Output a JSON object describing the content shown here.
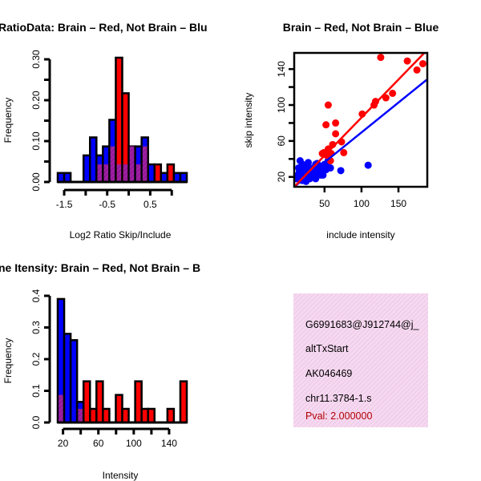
{
  "colors": {
    "brain": "#ff0000",
    "not_brain": "#0000ff",
    "overlap": "#a020a0",
    "info_bg": "#f7d8f2",
    "pval": "#b00000"
  },
  "chart_data": [
    {
      "type": "bar",
      "title": "RatioData: Brain – Red, Not Brain – Blu",
      "xlabel": "Log2 Ratio Skip/Include",
      "ylabel": "Frequency",
      "bin_start": -1.65,
      "bin_width": 0.15,
      "xlim": [
        -1.65,
        1.35
      ],
      "ylim": [
        0,
        0.3
      ],
      "xticks": [
        -1.5,
        -1.0,
        -0.5,
        0.0,
        0.5,
        1.0
      ],
      "xtick_labels": [
        "-1.5",
        "",
        "-0.5",
        "",
        "0.5",
        ""
      ],
      "yticks": [
        0,
        0.05,
        0.1,
        0.15,
        0.2,
        0.25,
        0.3
      ],
      "ytick_labels": [
        "0.00",
        "",
        "0.10",
        "",
        "0.20",
        "",
        "0.30"
      ],
      "series": [
        {
          "name": "Not Brain",
          "values": [
            0.022,
            0.022,
            0,
            0,
            0.065,
            0.109,
            0.065,
            0.087,
            0.152,
            0.043,
            0.043,
            0.087,
            0.087,
            0.109,
            0.043,
            0,
            0.022,
            0,
            0.022,
            0.022
          ]
        },
        {
          "name": "Brain",
          "values": [
            0,
            0,
            0,
            0,
            0,
            0,
            0.043,
            0.043,
            0.087,
            0.304,
            0.217,
            0.087,
            0.043,
            0.087,
            0,
            0.043,
            0,
            0.043,
            0,
            0
          ]
        }
      ]
    },
    {
      "type": "scatter",
      "title": "Brain – Red, Not Brain – Blue",
      "xlabel": "include intensity",
      "ylabel": "skip intensity",
      "xlim": [
        9,
        189
      ],
      "ylim": [
        9,
        158
      ],
      "xticks": [
        50,
        100,
        150
      ],
      "xtick_labels": [
        "50",
        "100",
        "150"
      ],
      "yticks": [
        20,
        40,
        60,
        80,
        100,
        120,
        140
      ],
      "ytick_labels": [
        "20",
        "",
        "60",
        "",
        "100",
        "",
        "140"
      ],
      "series": [
        {
          "name": "Brain",
          "points": [
            [
              126,
              153
            ],
            [
              162,
              149
            ],
            [
              183,
              146
            ],
            [
              175,
              139
            ],
            [
              142,
              113
            ],
            [
              133,
              108
            ],
            [
              119,
              104
            ],
            [
              117,
              100
            ],
            [
              101,
              90
            ],
            [
              55,
              100
            ],
            [
              52,
              78
            ],
            [
              65,
              80
            ],
            [
              65,
              68
            ],
            [
              61,
              56
            ],
            [
              73,
              59
            ],
            [
              76,
              47
            ],
            [
              55,
              51
            ],
            [
              49,
              47
            ],
            [
              58,
              38
            ],
            [
              59,
              46
            ],
            [
              53,
              44
            ],
            [
              47,
              46
            ]
          ],
          "fit": [
            [
              9,
              9
            ],
            [
              185,
              158
            ]
          ]
        },
        {
          "name": "Not Brain",
          "points": [
            [
              17,
              38
            ],
            [
              55,
              38
            ],
            [
              72,
              27
            ],
            [
              109,
              33
            ],
            [
              12,
              18
            ],
            [
              14,
              22
            ],
            [
              16,
              26
            ],
            [
              18,
              30
            ],
            [
              20,
              34
            ],
            [
              22,
              20
            ],
            [
              24,
              24
            ],
            [
              26,
              28
            ],
            [
              28,
              32
            ],
            [
              30,
              18
            ],
            [
              32,
              22
            ],
            [
              34,
              26
            ],
            [
              36,
              30
            ],
            [
              38,
              34
            ],
            [
              40,
              24
            ],
            [
              42,
              28
            ],
            [
              44,
              32
            ],
            [
              46,
              26
            ],
            [
              48,
              30
            ],
            [
              50,
              34
            ],
            [
              52,
              28
            ],
            [
              20,
              16
            ],
            [
              25,
              15
            ],
            [
              30,
              25
            ],
            [
              35,
              20
            ],
            [
              40,
              35
            ],
            [
              45,
              22
            ],
            [
              15,
              30
            ],
            [
              28,
              36
            ],
            [
              38,
              18
            ],
            [
              54,
              32
            ],
            [
              58,
              30
            ],
            [
              48,
              22
            ],
            [
              19,
              24
            ]
          ],
          "fit": [
            [
              9,
              9
            ],
            [
              188,
              128
            ]
          ]
        }
      ]
    },
    {
      "type": "bar",
      "title": "ne Itensity: Brain – Red, Not Brain – B",
      "xlabel": "Intensity",
      "ylabel": "Frequency",
      "bin_start": 14,
      "bin_width": 7.3,
      "xlim": [
        14,
        160
      ],
      "ylim": [
        0,
        0.4
      ],
      "xticks": [
        20,
        40,
        60,
        80,
        100,
        120,
        140
      ],
      "xtick_labels": [
        "20",
        "",
        "60",
        "",
        "100",
        "",
        "140"
      ],
      "yticks": [
        0,
        0.1,
        0.2,
        0.3,
        0.4
      ],
      "ytick_labels": [
        "0.0",
        "0.1",
        "0.2",
        "0.3",
        "0.4"
      ],
      "series": [
        {
          "name": "Not Brain",
          "values": [
            0.39,
            0.28,
            0.26,
            0.065,
            0,
            0,
            0,
            0,
            0,
            0,
            0,
            0,
            0,
            0,
            0,
            0,
            0,
            0,
            0,
            0
          ]
        },
        {
          "name": "Brain",
          "values": [
            0.087,
            0,
            0,
            0.043,
            0.13,
            0.043,
            0.13,
            0.043,
            0,
            0.087,
            0.043,
            0,
            0.13,
            0.043,
            0.043,
            0,
            0,
            0.043,
            0,
            0.13
          ]
        }
      ]
    }
  ],
  "info": {
    "lines": [
      "G6991683@J912744@j_",
      "altTxStart",
      "AK046469",
      "chr11.3784-1.s"
    ],
    "pval": "Pval: 2.000000"
  }
}
